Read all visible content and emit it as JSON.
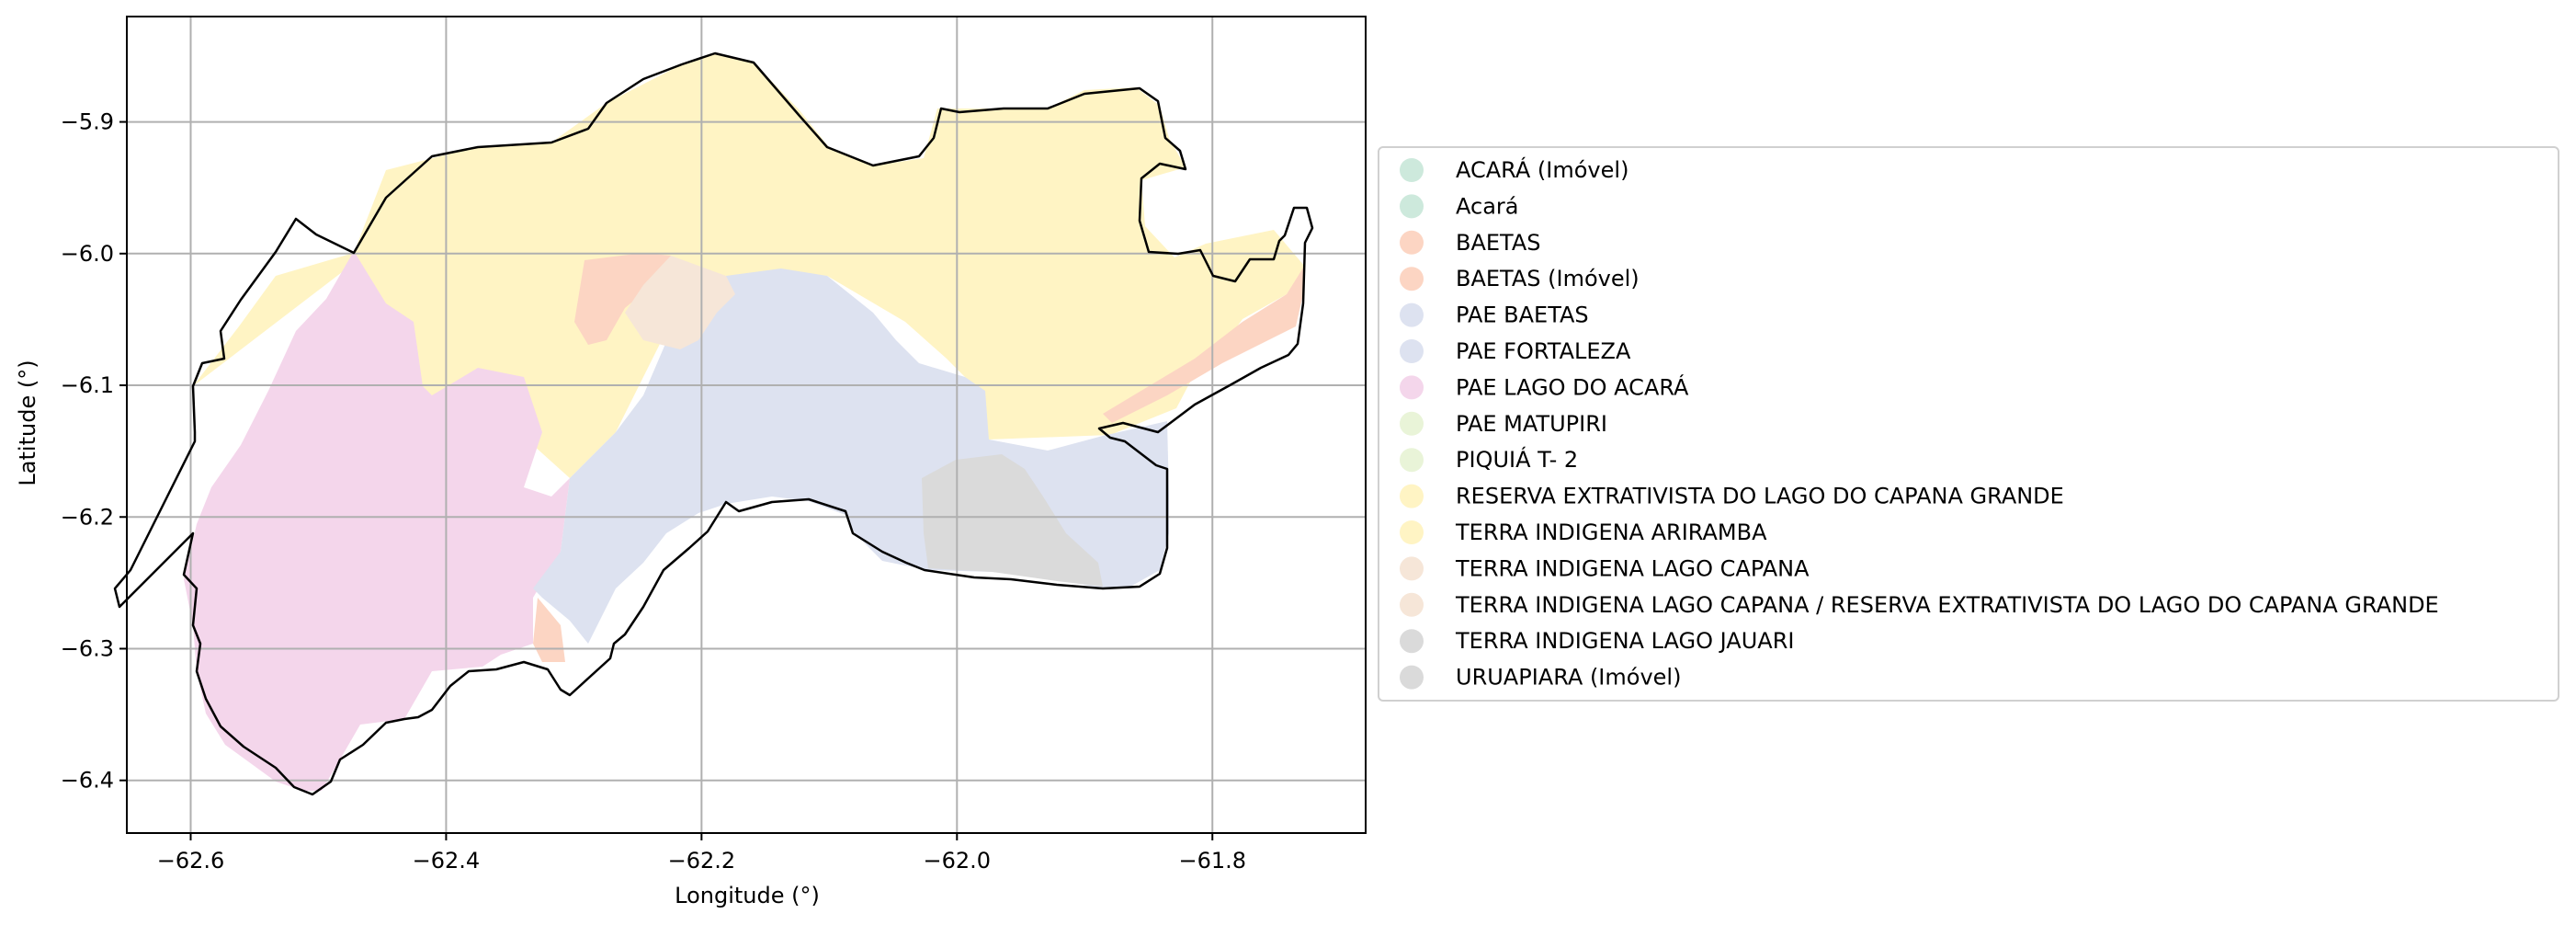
{
  "map": {
    "xlabel": "Longitude (°)",
    "ylabel": "Latitude (°)",
    "xlim": [
      -62.65,
      -61.68
    ],
    "ylim": [
      -6.44,
      -5.82
    ],
    "grid": true,
    "x_ticks": [
      {
        "value": -62.6,
        "label": "−62.6"
      },
      {
        "value": -62.4,
        "label": "−62.4"
      },
      {
        "value": -62.2,
        "label": "−62.2"
      },
      {
        "value": -62.0,
        "label": "−62.0"
      },
      {
        "value": -61.8,
        "label": "−61.8"
      }
    ],
    "y_ticks": [
      {
        "value": -5.9,
        "label": "−5.9"
      },
      {
        "value": -6.0,
        "label": "−6.0"
      },
      {
        "value": -6.1,
        "label": "−6.1"
      },
      {
        "value": -6.2,
        "label": "−6.2"
      },
      {
        "value": -6.3,
        "label": "−6.3"
      },
      {
        "value": -6.4,
        "label": "−6.4"
      }
    ],
    "legend_position": "right",
    "legend": [
      {
        "label": "ACARÁ (Imóvel)",
        "color": "#cde9dc"
      },
      {
        "label": "Acará",
        "color": "#cde9dc"
      },
      {
        "label": "BAETAS",
        "color": "#fcd5c3"
      },
      {
        "label": "BAETAS (Imóvel)",
        "color": "#fcd5c3"
      },
      {
        "label": "PAE BAETAS",
        "color": "#dde2f0"
      },
      {
        "label": "PAE FORTALEZA",
        "color": "#dde2f0"
      },
      {
        "label": "PAE LAGO DO ACARÁ",
        "color": "#f4d6eb"
      },
      {
        "label": "PAE MATUPIRI",
        "color": "#e9f4d8"
      },
      {
        "label": "PIQUIÁ T- 2",
        "color": "#e9f4d8"
      },
      {
        "label": "RESERVA EXTRATIVISTA DO LAGO DO CAPANA GRANDE",
        "color": "#fff4c4"
      },
      {
        "label": "TERRA INDIGENA ARIRAMBA",
        "color": "#fff4c4"
      },
      {
        "label": "TERRA INDIGENA LAGO CAPANA",
        "color": "#f6e6d8"
      },
      {
        "label": "TERRA INDIGENA LAGO CAPANA / RESERVA EXTRATIVISTA DO LAGO DO CAPANA GRANDE",
        "color": "#f6e6d8"
      },
      {
        "label": "TERRA INDIGENA LAGO JAUARI",
        "color": "#dadada"
      },
      {
        "label": "URUAPIARA (Imóvel)",
        "color": "#dadada"
      }
    ],
    "regions": [
      {
        "name": "RESERVA EXTRATIVISTA DO LAGO DO CAPANA GRANDE",
        "color": "#fff4c4"
      },
      {
        "name": "PAE LAGO DO ACARÁ",
        "color": "#f4d6eb"
      },
      {
        "name": "PAE BAETAS",
        "color": "#dde2f0"
      },
      {
        "name": "TERRA INDIGENA LAGO JAUARI",
        "color": "#dadada"
      },
      {
        "name": "BAETAS",
        "color": "#fcd5c3"
      },
      {
        "name": "TERRA INDIGENA LAGO CAPANA",
        "color": "#f6e6d8"
      }
    ],
    "boundary_color": "#000000",
    "grid_color": "#b0b0b0"
  }
}
